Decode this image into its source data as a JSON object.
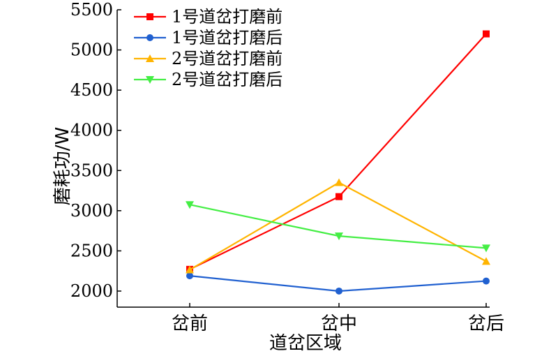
{
  "chart_data": {
    "type": "line",
    "categories": [
      "岔前",
      "岔中",
      "岔后"
    ],
    "xlabel": "道岔区域",
    "ylabel": "磨耗功/W",
    "ylim": [
      1800,
      5500
    ],
    "yticks": [
      2000,
      2500,
      3000,
      3500,
      4000,
      4500,
      5000,
      5500
    ],
    "legend_position": "top-left",
    "grid": false,
    "series": [
      {
        "name": "1号道岔打磨前",
        "color": "#ff0000",
        "marker": "square",
        "values": [
          2270,
          3175,
          5200
        ]
      },
      {
        "name": "1号道岔打磨后",
        "color": "#2060d0",
        "marker": "circle",
        "values": [
          2190,
          2000,
          2125
        ]
      },
      {
        "name": "2号道岔打磨前",
        "color": "#ffb400",
        "marker": "triangle-up",
        "values": [
          2265,
          3350,
          2370
        ]
      },
      {
        "name": "2号道岔打磨后",
        "color": "#44ee44",
        "marker": "triangle-down",
        "values": [
          3075,
          2685,
          2535
        ]
      }
    ]
  }
}
